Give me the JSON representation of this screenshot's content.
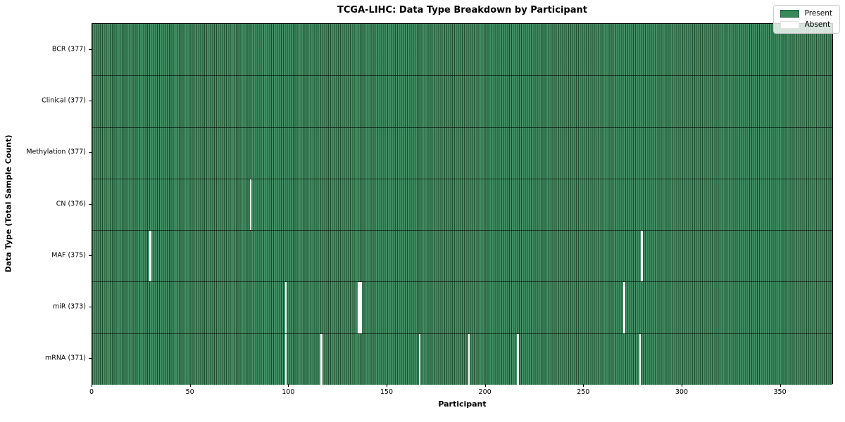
{
  "figure": {
    "title": "TCGA-LIHC: Data Type Breakdown by Participant",
    "xlabel": "Participant",
    "ylabel": "Data Type (Total Sample Count)"
  },
  "legend": {
    "position": "upper-right",
    "items": [
      {
        "label": "Present",
        "color": "#38895A"
      },
      {
        "label": "Absent",
        "color": "#ffffff"
      }
    ]
  },
  "chart_data": {
    "type": "heatmap",
    "title": "TCGA-LIHC: Data Type Breakdown by Participant",
    "xlabel": "Participant",
    "ylabel": "Data Type (Total Sample Count)",
    "n_participants": 377,
    "xlim": [
      0,
      377
    ],
    "x_ticks": [
      0,
      50,
      100,
      150,
      200,
      250,
      300,
      350
    ],
    "grid": false,
    "legend_entries": [
      "Present",
      "Absent"
    ],
    "colors": {
      "present": "#38895A",
      "absent": "#ffffff",
      "row_separator": "#1a1a1a"
    },
    "rows": [
      {
        "label": "BCR (377)",
        "data_type": "BCR",
        "total_samples": 377,
        "absent_participants": []
      },
      {
        "label": "Clinical (377)",
        "data_type": "Clinical",
        "total_samples": 377,
        "absent_participants": []
      },
      {
        "label": "Methylation (377)",
        "data_type": "Methylation",
        "total_samples": 377,
        "absent_participants": []
      },
      {
        "label": "CN (376)",
        "data_type": "CN",
        "total_samples": 376,
        "absent_participants": [
          80
        ]
      },
      {
        "label": "MAF (375)",
        "data_type": "MAF",
        "total_samples": 375,
        "absent_participants": [
          29,
          279
        ]
      },
      {
        "label": "miR (373)",
        "data_type": "miR",
        "total_samples": 373,
        "absent_participants": [
          98,
          135,
          136,
          270
        ]
      },
      {
        "label": "mRNA (371)",
        "data_type": "mRNA",
        "total_samples": 371,
        "absent_participants": [
          98,
          116,
          166,
          191,
          216,
          278
        ]
      }
    ]
  }
}
